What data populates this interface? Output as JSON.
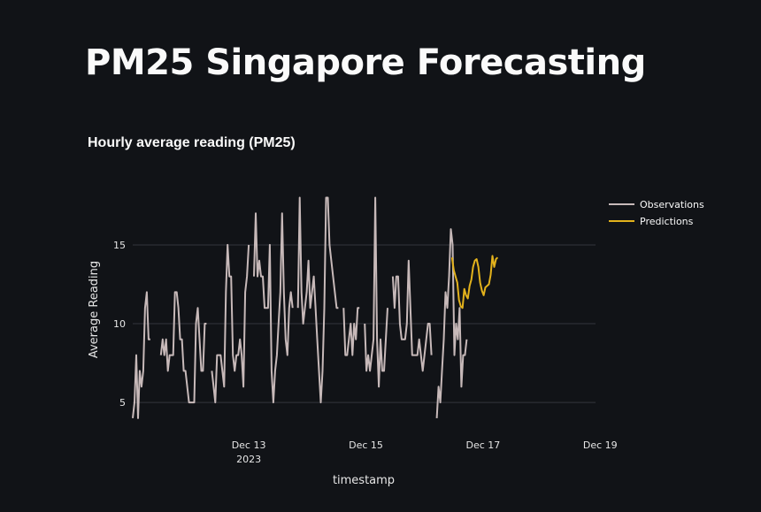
{
  "page": {
    "title": "PM25 Singapore Forecasting"
  },
  "chart_data": {
    "type": "line",
    "title": "Hourly average reading (PM25)",
    "xlabel": "timestamp",
    "ylabel": "Average Reading",
    "ylim": [
      3.6,
      19.6
    ],
    "grid": true,
    "legend_position": "right",
    "y_ticks": [
      5,
      10,
      15
    ],
    "x_ticks": [
      {
        "day": 1.98,
        "label": "Dec 13",
        "sublabel": "2023"
      },
      {
        "day": 3.98,
        "label": "Dec 15",
        "sublabel": ""
      },
      {
        "day": 5.98,
        "label": "Dec 17",
        "sublabel": ""
      },
      {
        "day": 7.98,
        "label": "Dec 19",
        "sublabel": ""
      }
    ],
    "x_start_day": 0,
    "x_end_day": 7.9,
    "series": [
      {
        "name": "Observations",
        "color": "#c7b9b9",
        "points": [
          [
            0,
            4
          ],
          [
            0.03,
            5
          ],
          [
            0.06,
            8
          ],
          [
            0.09,
            4
          ],
          [
            0.12,
            7
          ],
          [
            0.15,
            6
          ],
          [
            0.18,
            7
          ],
          [
            0.21,
            11
          ],
          [
            0.24,
            12
          ],
          [
            0.27,
            9
          ],
          [
            0.3,
            9
          ],
          [
            0.33,
            null
          ],
          [
            0.45,
            null
          ],
          [
            0.48,
            8
          ],
          [
            0.51,
            9
          ],
          [
            0.54,
            8
          ],
          [
            0.57,
            9
          ],
          [
            0.6,
            7
          ],
          [
            0.63,
            8
          ],
          [
            0.66,
            8
          ],
          [
            0.69,
            8
          ],
          [
            0.72,
            12
          ],
          [
            0.75,
            12
          ],
          [
            0.78,
            11
          ],
          [
            0.81,
            9
          ],
          [
            0.84,
            9
          ],
          [
            0.87,
            7
          ],
          [
            0.9,
            7
          ],
          [
            0.93,
            6
          ],
          [
            0.96,
            5
          ],
          [
            0.99,
            5
          ],
          [
            1.02,
            5
          ],
          [
            1.05,
            5
          ],
          [
            1.08,
            10
          ],
          [
            1.11,
            11
          ],
          [
            1.14,
            9
          ],
          [
            1.17,
            7
          ],
          [
            1.2,
            7
          ],
          [
            1.23,
            10
          ],
          [
            1.26,
            10
          ],
          [
            1.29,
            null
          ],
          [
            1.32,
            null
          ],
          [
            1.35,
            7
          ],
          [
            1.38,
            6
          ],
          [
            1.41,
            5
          ],
          [
            1.44,
            8
          ],
          [
            1.47,
            8
          ],
          [
            1.5,
            8
          ],
          [
            1.53,
            7
          ],
          [
            1.56,
            6
          ],
          [
            1.59,
            12
          ],
          [
            1.62,
            15
          ],
          [
            1.65,
            13
          ],
          [
            1.68,
            13
          ],
          [
            1.71,
            8
          ],
          [
            1.74,
            7
          ],
          [
            1.77,
            8
          ],
          [
            1.8,
            8
          ],
          [
            1.83,
            9
          ],
          [
            1.86,
            8
          ],
          [
            1.89,
            6
          ],
          [
            1.92,
            12
          ],
          [
            1.95,
            13
          ],
          [
            1.98,
            15
          ],
          [
            2.01,
            null
          ],
          [
            2.04,
            null
          ],
          [
            2.07,
            13
          ],
          [
            2.1,
            17
          ],
          [
            2.13,
            13
          ],
          [
            2.16,
            14
          ],
          [
            2.19,
            13
          ],
          [
            2.22,
            13
          ],
          [
            2.25,
            11
          ],
          [
            2.28,
            11
          ],
          [
            2.31,
            11
          ],
          [
            2.34,
            15
          ],
          [
            2.37,
            7
          ],
          [
            2.4,
            5
          ],
          [
            2.43,
            7
          ],
          [
            2.46,
            8
          ],
          [
            2.49,
            10
          ],
          [
            2.52,
            12
          ],
          [
            2.55,
            17
          ],
          [
            2.58,
            12
          ],
          [
            2.61,
            9
          ],
          [
            2.64,
            8
          ],
          [
            2.67,
            11
          ],
          [
            2.7,
            12
          ],
          [
            2.73,
            11
          ],
          [
            2.76,
            null
          ],
          [
            2.79,
            null
          ],
          [
            2.82,
            11
          ],
          [
            2.85,
            18
          ],
          [
            2.88,
            12
          ],
          [
            2.91,
            10
          ],
          [
            2.94,
            11
          ],
          [
            2.97,
            12
          ],
          [
            3.0,
            14
          ],
          [
            3.03,
            11
          ],
          [
            3.06,
            12
          ],
          [
            3.09,
            13
          ],
          [
            3.12,
            11
          ],
          [
            3.15,
            9
          ],
          [
            3.18,
            7
          ],
          [
            3.21,
            5
          ],
          [
            3.24,
            7
          ],
          [
            3.27,
            11
          ],
          [
            3.3,
            18
          ],
          [
            3.33,
            18
          ],
          [
            3.36,
            15
          ],
          [
            3.39,
            14
          ],
          [
            3.42,
            13
          ],
          [
            3.45,
            12
          ],
          [
            3.48,
            11
          ],
          [
            3.51,
            11
          ],
          [
            3.54,
            null
          ],
          [
            3.57,
            null
          ],
          [
            3.6,
            11
          ],
          [
            3.63,
            8
          ],
          [
            3.66,
            8
          ],
          [
            3.69,
            9
          ],
          [
            3.72,
            10
          ],
          [
            3.75,
            8
          ],
          [
            3.78,
            10
          ],
          [
            3.81,
            9
          ],
          [
            3.84,
            11
          ],
          [
            3.87,
            11
          ],
          [
            3.9,
            null
          ],
          [
            3.93,
            null
          ],
          [
            3.96,
            10
          ],
          [
            3.99,
            7
          ],
          [
            4.02,
            8
          ],
          [
            4.05,
            7
          ],
          [
            4.08,
            8
          ],
          [
            4.11,
            9
          ],
          [
            4.14,
            18
          ],
          [
            4.17,
            9
          ],
          [
            4.2,
            6
          ],
          [
            4.23,
            9
          ],
          [
            4.26,
            7
          ],
          [
            4.29,
            7
          ],
          [
            4.32,
            9
          ],
          [
            4.35,
            11
          ],
          [
            4.38,
            null
          ],
          [
            4.41,
            null
          ],
          [
            4.44,
            13
          ],
          [
            4.47,
            11
          ],
          [
            4.5,
            13
          ],
          [
            4.53,
            13
          ],
          [
            4.56,
            10
          ],
          [
            4.59,
            9
          ],
          [
            4.62,
            9
          ],
          [
            4.65,
            9
          ],
          [
            4.68,
            10
          ],
          [
            4.71,
            14
          ],
          [
            4.74,
            11
          ],
          [
            4.77,
            8
          ],
          [
            4.8,
            8
          ],
          [
            4.83,
            8
          ],
          [
            4.86,
            8
          ],
          [
            4.89,
            9
          ],
          [
            4.92,
            8
          ],
          [
            4.95,
            7
          ],
          [
            4.98,
            8
          ],
          [
            5.01,
            9
          ],
          [
            5.04,
            10
          ],
          [
            5.07,
            10
          ],
          [
            5.1,
            8
          ],
          [
            5.13,
            null
          ],
          [
            5.16,
            null
          ],
          [
            5.19,
            4
          ],
          [
            5.22,
            6
          ],
          [
            5.25,
            5
          ],
          [
            5.28,
            7
          ],
          [
            5.31,
            9
          ],
          [
            5.34,
            12
          ],
          [
            5.37,
            11
          ],
          [
            5.4,
            13
          ],
          [
            5.43,
            16
          ],
          [
            5.46,
            15
          ],
          [
            5.49,
            8
          ],
          [
            5.52,
            10
          ],
          [
            5.55,
            9
          ],
          [
            5.58,
            11
          ],
          [
            5.61,
            6
          ],
          [
            5.64,
            8
          ],
          [
            5.67,
            8
          ],
          [
            5.7,
            9
          ]
        ]
      },
      {
        "name": "Predictions",
        "color": "#e3b21c",
        "points": [
          [
            5.45,
            14.2
          ],
          [
            5.48,
            13.4
          ],
          [
            5.51,
            13.0
          ],
          [
            5.54,
            12.6
          ],
          [
            5.57,
            11.5
          ],
          [
            5.6,
            11.1
          ],
          [
            5.63,
            11.0
          ],
          [
            5.66,
            12.2
          ],
          [
            5.69,
            11.8
          ],
          [
            5.72,
            11.6
          ],
          [
            5.75,
            12.4
          ],
          [
            5.78,
            12.8
          ],
          [
            5.81,
            13.6
          ],
          [
            5.84,
            14.0
          ],
          [
            5.87,
            14.1
          ],
          [
            5.9,
            13.6
          ],
          [
            5.93,
            12.6
          ],
          [
            5.96,
            12.1
          ],
          [
            5.99,
            11.8
          ],
          [
            6.02,
            12.3
          ],
          [
            6.05,
            12.4
          ],
          [
            6.08,
            12.5
          ],
          [
            6.11,
            13.1
          ],
          [
            6.14,
            14.3
          ],
          [
            6.17,
            13.6
          ],
          [
            6.2,
            14.1
          ],
          [
            6.23,
            14.2
          ]
        ]
      }
    ]
  }
}
